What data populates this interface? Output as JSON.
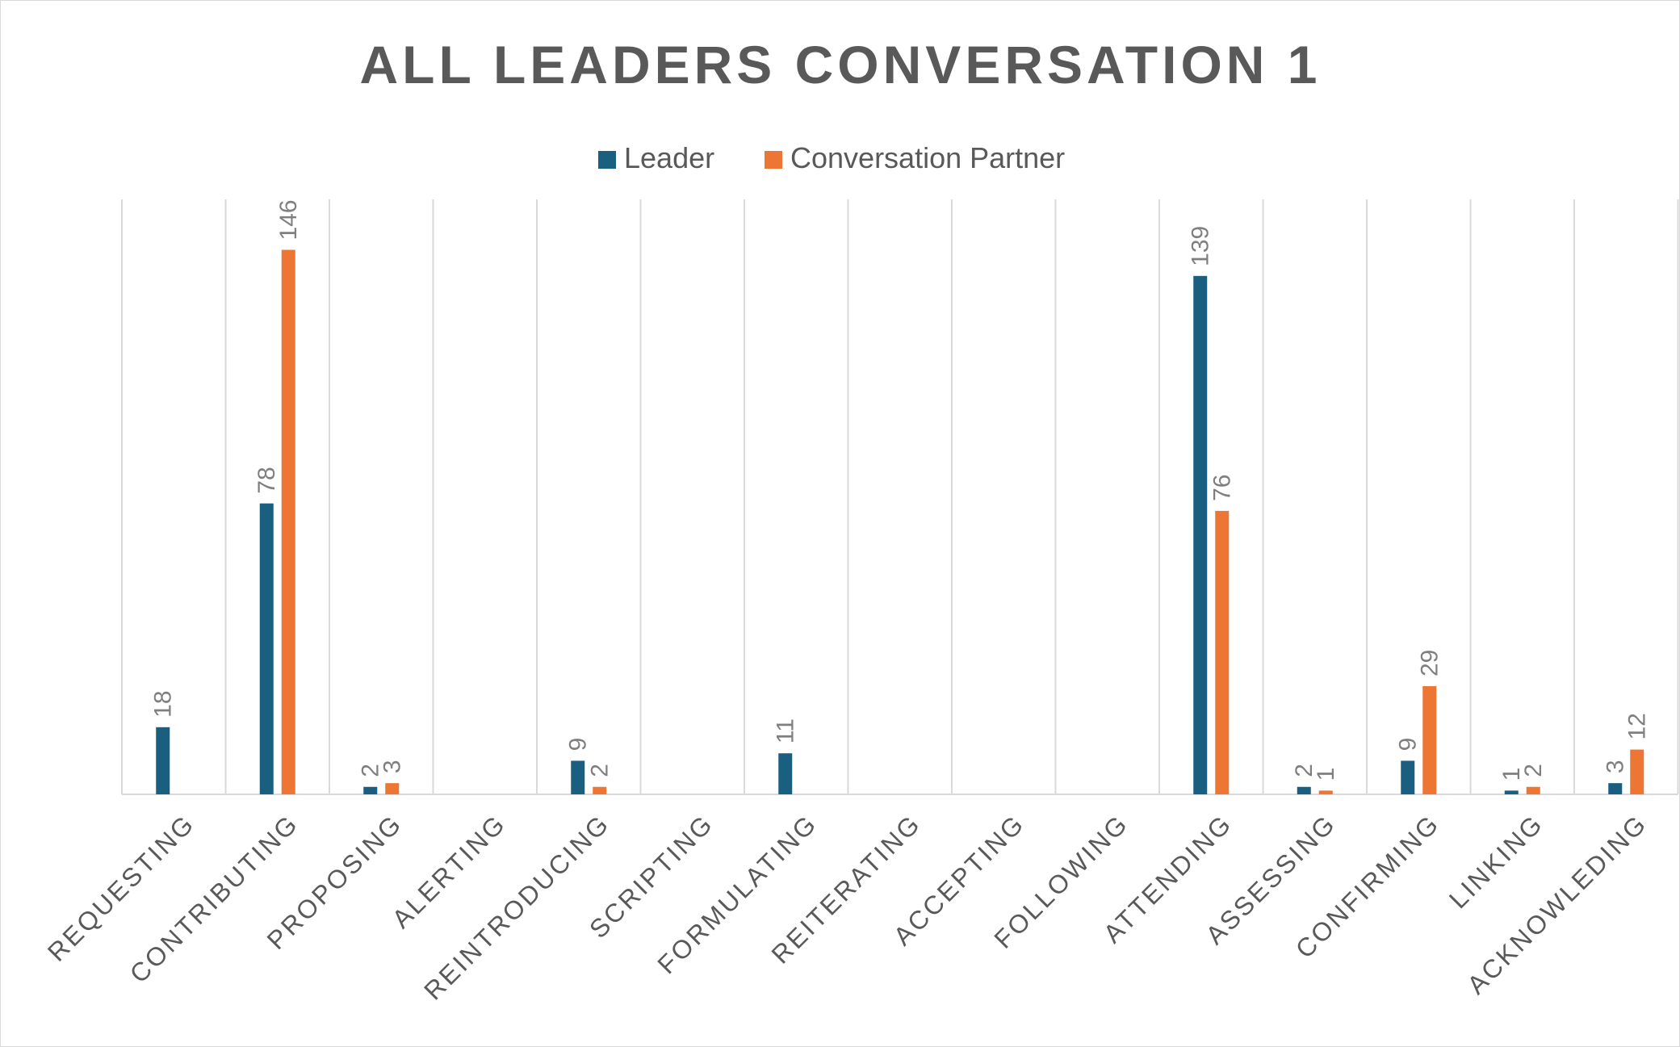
{
  "chart_data": {
    "type": "bar",
    "title": "ALL LEADERS CONVERSATION 1",
    "xlabel": "",
    "ylabel": "",
    "categories": [
      "REQUESTING",
      "CONTRIBUTING",
      "PROPOSING",
      "ALERTING",
      "REINTRODUCING",
      "SCRIPTING",
      "FORMULATING",
      "REITERATING",
      "ACCEPTING",
      "FOLLOWING",
      "ATTENDING",
      "ASSESSING",
      "CONFIRMING",
      "LINKING",
      "ACKNOWLEDING"
    ],
    "series": [
      {
        "name": "Leader",
        "color": "#1a5f80",
        "values": [
          18,
          78,
          2,
          null,
          9,
          null,
          11,
          null,
          null,
          null,
          139,
          2,
          9,
          1,
          3
        ]
      },
      {
        "name": "Conversation Partner",
        "color": "#ed7635",
        "values": [
          null,
          146,
          3,
          null,
          2,
          null,
          null,
          null,
          null,
          null,
          76,
          1,
          29,
          2,
          12
        ]
      }
    ],
    "ylim": [
      0,
      160
    ],
    "grid": "vertical",
    "legend": "top-center",
    "data_labels": true
  }
}
